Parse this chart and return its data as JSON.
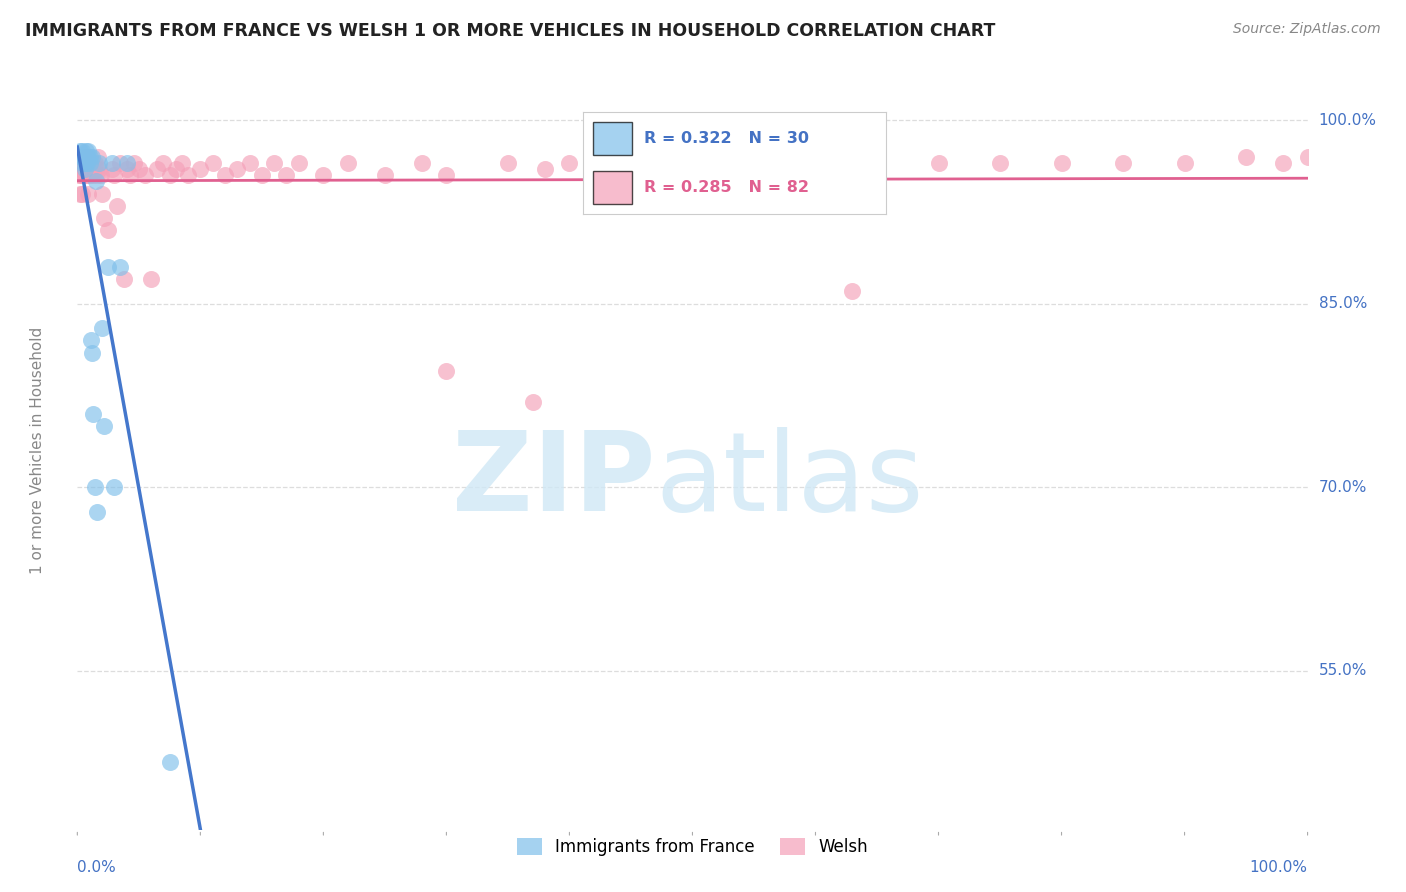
{
  "title": "IMMIGRANTS FROM FRANCE VS WELSH 1 OR MORE VEHICLES IN HOUSEHOLD CORRELATION CHART",
  "source": "Source: ZipAtlas.com",
  "ylabel": "1 or more Vehicles in Household",
  "ytick_labels": [
    "100.0%",
    "85.0%",
    "70.0%",
    "55.0%"
  ],
  "ytick_values": [
    1.0,
    0.85,
    0.7,
    0.55
  ],
  "xlim": [
    0.0,
    1.0
  ],
  "ylim": [
    0.42,
    1.04
  ],
  "legend_blue_label": "Immigrants from France",
  "legend_pink_label": "Welsh",
  "R_blue": 0.322,
  "N_blue": 30,
  "R_pink": 0.285,
  "N_pink": 82,
  "blue_color": "#7fbfea",
  "pink_color": "#f4a0b8",
  "blue_line_color": "#4477cc",
  "pink_line_color": "#e06090",
  "blue_x": [
    0.002,
    0.003,
    0.004,
    0.005,
    0.005,
    0.006,
    0.007,
    0.007,
    0.008,
    0.008,
    0.009,
    0.009,
    0.01,
    0.01,
    0.011,
    0.012,
    0.012,
    0.013,
    0.014,
    0.015,
    0.016,
    0.018,
    0.02,
    0.022,
    0.025,
    0.028,
    0.03,
    0.035,
    0.04,
    0.075
  ],
  "blue_y": [
    0.975,
    0.97,
    0.975,
    0.965,
    0.97,
    0.96,
    0.975,
    0.965,
    0.97,
    0.965,
    0.97,
    0.975,
    0.965,
    0.97,
    0.82,
    0.81,
    0.97,
    0.76,
    0.7,
    0.95,
    0.68,
    0.965,
    0.83,
    0.75,
    0.88,
    0.965,
    0.7,
    0.88,
    0.965,
    0.475
  ],
  "pink_x": [
    0.001,
    0.002,
    0.002,
    0.003,
    0.003,
    0.004,
    0.004,
    0.005,
    0.005,
    0.006,
    0.006,
    0.007,
    0.007,
    0.008,
    0.008,
    0.009,
    0.009,
    0.01,
    0.01,
    0.011,
    0.012,
    0.013,
    0.014,
    0.015,
    0.016,
    0.017,
    0.018,
    0.019,
    0.02,
    0.022,
    0.025,
    0.028,
    0.03,
    0.032,
    0.035,
    0.038,
    0.04,
    0.043,
    0.046,
    0.05,
    0.055,
    0.06,
    0.065,
    0.07,
    0.075,
    0.08,
    0.085,
    0.09,
    0.1,
    0.11,
    0.12,
    0.13,
    0.14,
    0.15,
    0.16,
    0.17,
    0.18,
    0.2,
    0.22,
    0.25,
    0.28,
    0.3,
    0.35,
    0.38,
    0.4,
    0.42,
    0.45,
    0.5,
    0.55,
    0.6,
    0.65,
    0.7,
    0.75,
    0.8,
    0.85,
    0.9,
    0.95,
    0.98,
    1.0,
    0.63,
    0.37,
    0.3
  ],
  "pink_y": [
    0.955,
    0.965,
    0.94,
    0.96,
    0.955,
    0.965,
    0.94,
    0.96,
    0.955,
    0.97,
    0.96,
    0.965,
    0.955,
    0.97,
    0.955,
    0.965,
    0.94,
    0.96,
    0.955,
    0.965,
    0.96,
    0.955,
    0.965,
    0.96,
    0.955,
    0.97,
    0.96,
    0.955,
    0.94,
    0.92,
    0.91,
    0.96,
    0.955,
    0.93,
    0.965,
    0.87,
    0.96,
    0.955,
    0.965,
    0.96,
    0.955,
    0.87,
    0.96,
    0.965,
    0.955,
    0.96,
    0.965,
    0.955,
    0.96,
    0.965,
    0.955,
    0.96,
    0.965,
    0.955,
    0.965,
    0.955,
    0.965,
    0.955,
    0.965,
    0.955,
    0.965,
    0.955,
    0.965,
    0.96,
    0.965,
    0.96,
    0.965,
    0.965,
    0.965,
    0.965,
    0.965,
    0.965,
    0.965,
    0.965,
    0.965,
    0.965,
    0.97,
    0.965,
    0.97,
    0.86,
    0.77,
    0.795
  ]
}
